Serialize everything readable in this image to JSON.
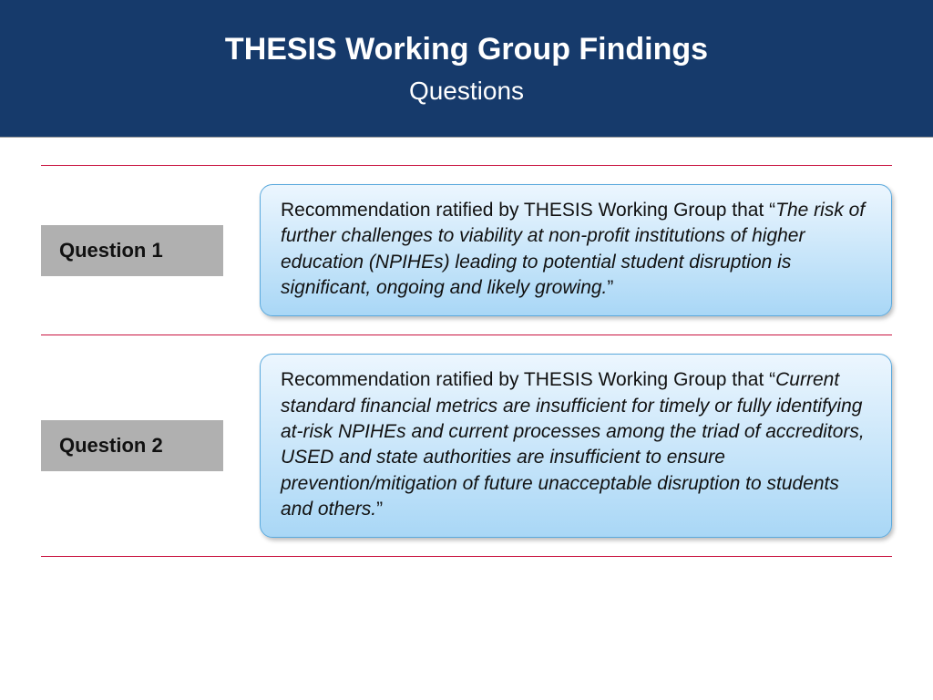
{
  "header": {
    "title": "THESIS Working Group Findings",
    "subtitle": "Questions",
    "background_color": "#163a6b",
    "title_color": "#ffffff",
    "title_fontsize": 34,
    "subtitle_fontsize": 28,
    "underline_color": "#9a9a9a"
  },
  "divider": {
    "color": "#c9133f",
    "thickness": 1
  },
  "label_box": {
    "background_color": "#b0b0b0",
    "text_color": "#111111",
    "fontsize": 22,
    "font_weight": 700
  },
  "content_box": {
    "gradient_from": "#ecf6fe",
    "gradient_to": "#a9d7f6",
    "border_color": "#5aa9dd",
    "text_color": "#111111",
    "fontsize": 21,
    "border_radius": 14
  },
  "items": [
    {
      "label": "Question 1",
      "lead": "Recommendation ratified by THESIS Working Group that “",
      "quoted": "The risk of further challenges to viability at non-profit institutions of higher education (NPIHEs) leading to potential student disruption is significant, ongoing and likely growing.",
      "trail": "”"
    },
    {
      "label": "Question 2",
      "lead": "Recommendation ratified by THESIS Working Group that “",
      "quoted": "Current standard financial metrics are insufficient for timely or fully identifying at-risk NPIHEs and current processes among the triad of accreditors, USED and state authorities are insufficient to ensure prevention/mitigation of future unacceptable disruption to students and others.",
      "trail": "”"
    }
  ]
}
